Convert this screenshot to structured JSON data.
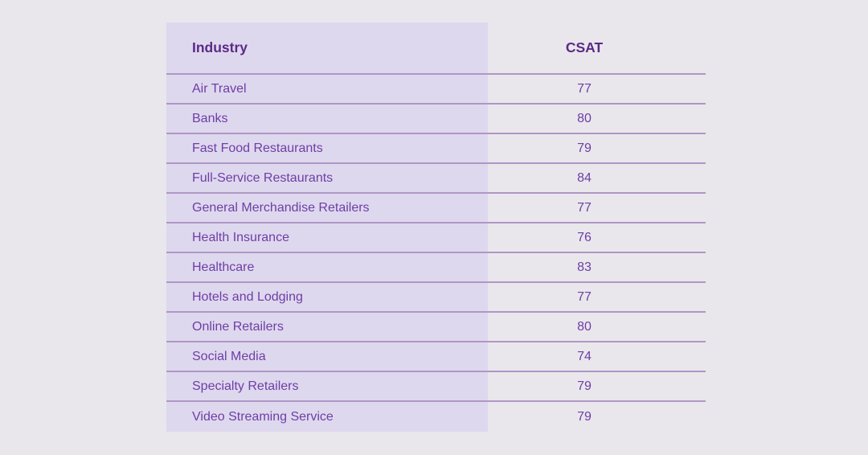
{
  "page": {
    "background_color": "#e9e7ec"
  },
  "colors": {
    "row_left_bg": "#ded8ee",
    "divider": "#a98cc5",
    "header_text": "#5b2b87",
    "body_text": "#6e3ea6"
  },
  "chart_data": {
    "type": "table",
    "title": "",
    "columns": [
      "Industry",
      "CSAT"
    ],
    "rows": [
      [
        "Air Travel",
        77
      ],
      [
        "Banks",
        80
      ],
      [
        "Fast Food Restaurants",
        79
      ],
      [
        "Full-Service Restaurants",
        84
      ],
      [
        "General Merchandise Retailers",
        77
      ],
      [
        "Health Insurance",
        76
      ],
      [
        "Healthcare",
        83
      ],
      [
        "Hotels and Lodging",
        77
      ],
      [
        "Online Retailers",
        80
      ],
      [
        "Social Media",
        74
      ],
      [
        "Specialty Retailers",
        79
      ],
      [
        "Video Streaming Service",
        79
      ]
    ]
  }
}
